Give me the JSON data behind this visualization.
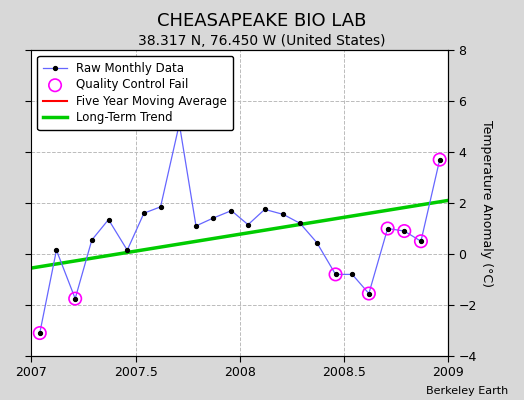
{
  "title": "CHEASAPEAKE BIO LAB",
  "subtitle": "38.317 N, 76.450 W (United States)",
  "attribution": "Berkeley Earth",
  "xlim": [
    2007.0,
    2009.0
  ],
  "ylim": [
    -4,
    8
  ],
  "yticks": [
    -4,
    -2,
    0,
    2,
    4,
    6,
    8
  ],
  "xticks": [
    2007.0,
    2007.5,
    2008.0,
    2008.5,
    2009.0
  ],
  "outer_bg": "#d8d8d8",
  "plot_bg": "#ffffff",
  "raw_x": [
    2007.04,
    2007.12,
    2007.21,
    2007.29,
    2007.37,
    2007.46,
    2007.54,
    2007.62,
    2007.71,
    2007.79,
    2007.87,
    2007.96,
    2008.04,
    2008.12,
    2008.21,
    2008.29,
    2008.37,
    2008.46,
    2008.54,
    2008.62,
    2008.71,
    2008.79,
    2008.87,
    2008.96
  ],
  "raw_y": [
    -3.1,
    0.15,
    -1.75,
    0.55,
    1.35,
    0.15,
    1.6,
    1.85,
    5.1,
    1.1,
    1.4,
    1.7,
    1.15,
    1.75,
    1.55,
    1.2,
    0.45,
    -0.8,
    -0.8,
    -1.55,
    1.0,
    0.9,
    0.5,
    3.7
  ],
  "qc_fail_x": [
    2007.04,
    2007.21,
    2008.46,
    2008.62,
    2008.71,
    2008.79,
    2008.87,
    2008.96
  ],
  "qc_fail_y": [
    -3.1,
    -1.75,
    -0.8,
    -1.55,
    1.0,
    0.9,
    0.5,
    3.7
  ],
  "trend_x": [
    2007.0,
    2009.0
  ],
  "trend_y": [
    -0.55,
    2.1
  ],
  "line_color": "#6666ff",
  "marker_color": "#000000",
  "qc_color": "#ff00ff",
  "trend_color": "#00cc00",
  "moving_avg_color": "#ff0000",
  "grid_color": "#bbbbbb",
  "title_fontsize": 13,
  "subtitle_fontsize": 10,
  "legend_fontsize": 8.5,
  "tick_fontsize": 9,
  "ylabel_fontsize": 9
}
